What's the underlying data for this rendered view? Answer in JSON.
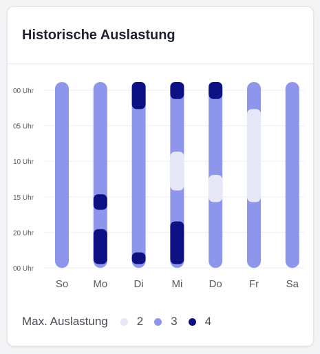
{
  "card": {
    "title": "Historische Auslastung"
  },
  "legend": {
    "title": "Max. Auslastung",
    "items": [
      {
        "label": "2",
        "color": "#e6e7f7"
      },
      {
        "label": "3",
        "color": "#8e96ec"
      },
      {
        "label": "4",
        "color": "#0d1183"
      }
    ]
  },
  "chart_data": {
    "type": "heatmap",
    "days": [
      "So",
      "Mo",
      "Di",
      "Mi",
      "Do",
      "Fr",
      "Sa"
    ],
    "y_ticks": [
      "00 Uhr",
      "05 Uhr",
      "10 Uhr",
      "15 Uhr",
      "20 Uhr",
      "00 Uhr"
    ],
    "ylim": [
      0,
      24
    ],
    "grid": true,
    "base_level": "3",
    "colors": {
      "2": "#e6e7f7",
      "3": "#8e96ec",
      "4": "#0d1183"
    },
    "segments": [
      {
        "day": "Mo",
        "level": "4",
        "from": 14.5,
        "to": 16.5
      },
      {
        "day": "Mo",
        "level": "4",
        "from": 19,
        "to": 23.5
      },
      {
        "day": "Di",
        "level": "4",
        "from": 0,
        "to": 3.5
      },
      {
        "day": "Di",
        "level": "4",
        "from": 22,
        "to": 23.5
      },
      {
        "day": "Mi",
        "level": "4",
        "from": 0,
        "to": 2.2
      },
      {
        "day": "Mi",
        "level": "2",
        "from": 9,
        "to": 14
      },
      {
        "day": "Mi",
        "level": "4",
        "from": 18,
        "to": 23.5
      },
      {
        "day": "Do",
        "level": "4",
        "from": 0,
        "to": 2.2
      },
      {
        "day": "Do",
        "level": "2",
        "from": 12,
        "to": 15.5
      },
      {
        "day": "Fr",
        "level": "2",
        "from": 3.5,
        "to": 15.5
      }
    ]
  }
}
